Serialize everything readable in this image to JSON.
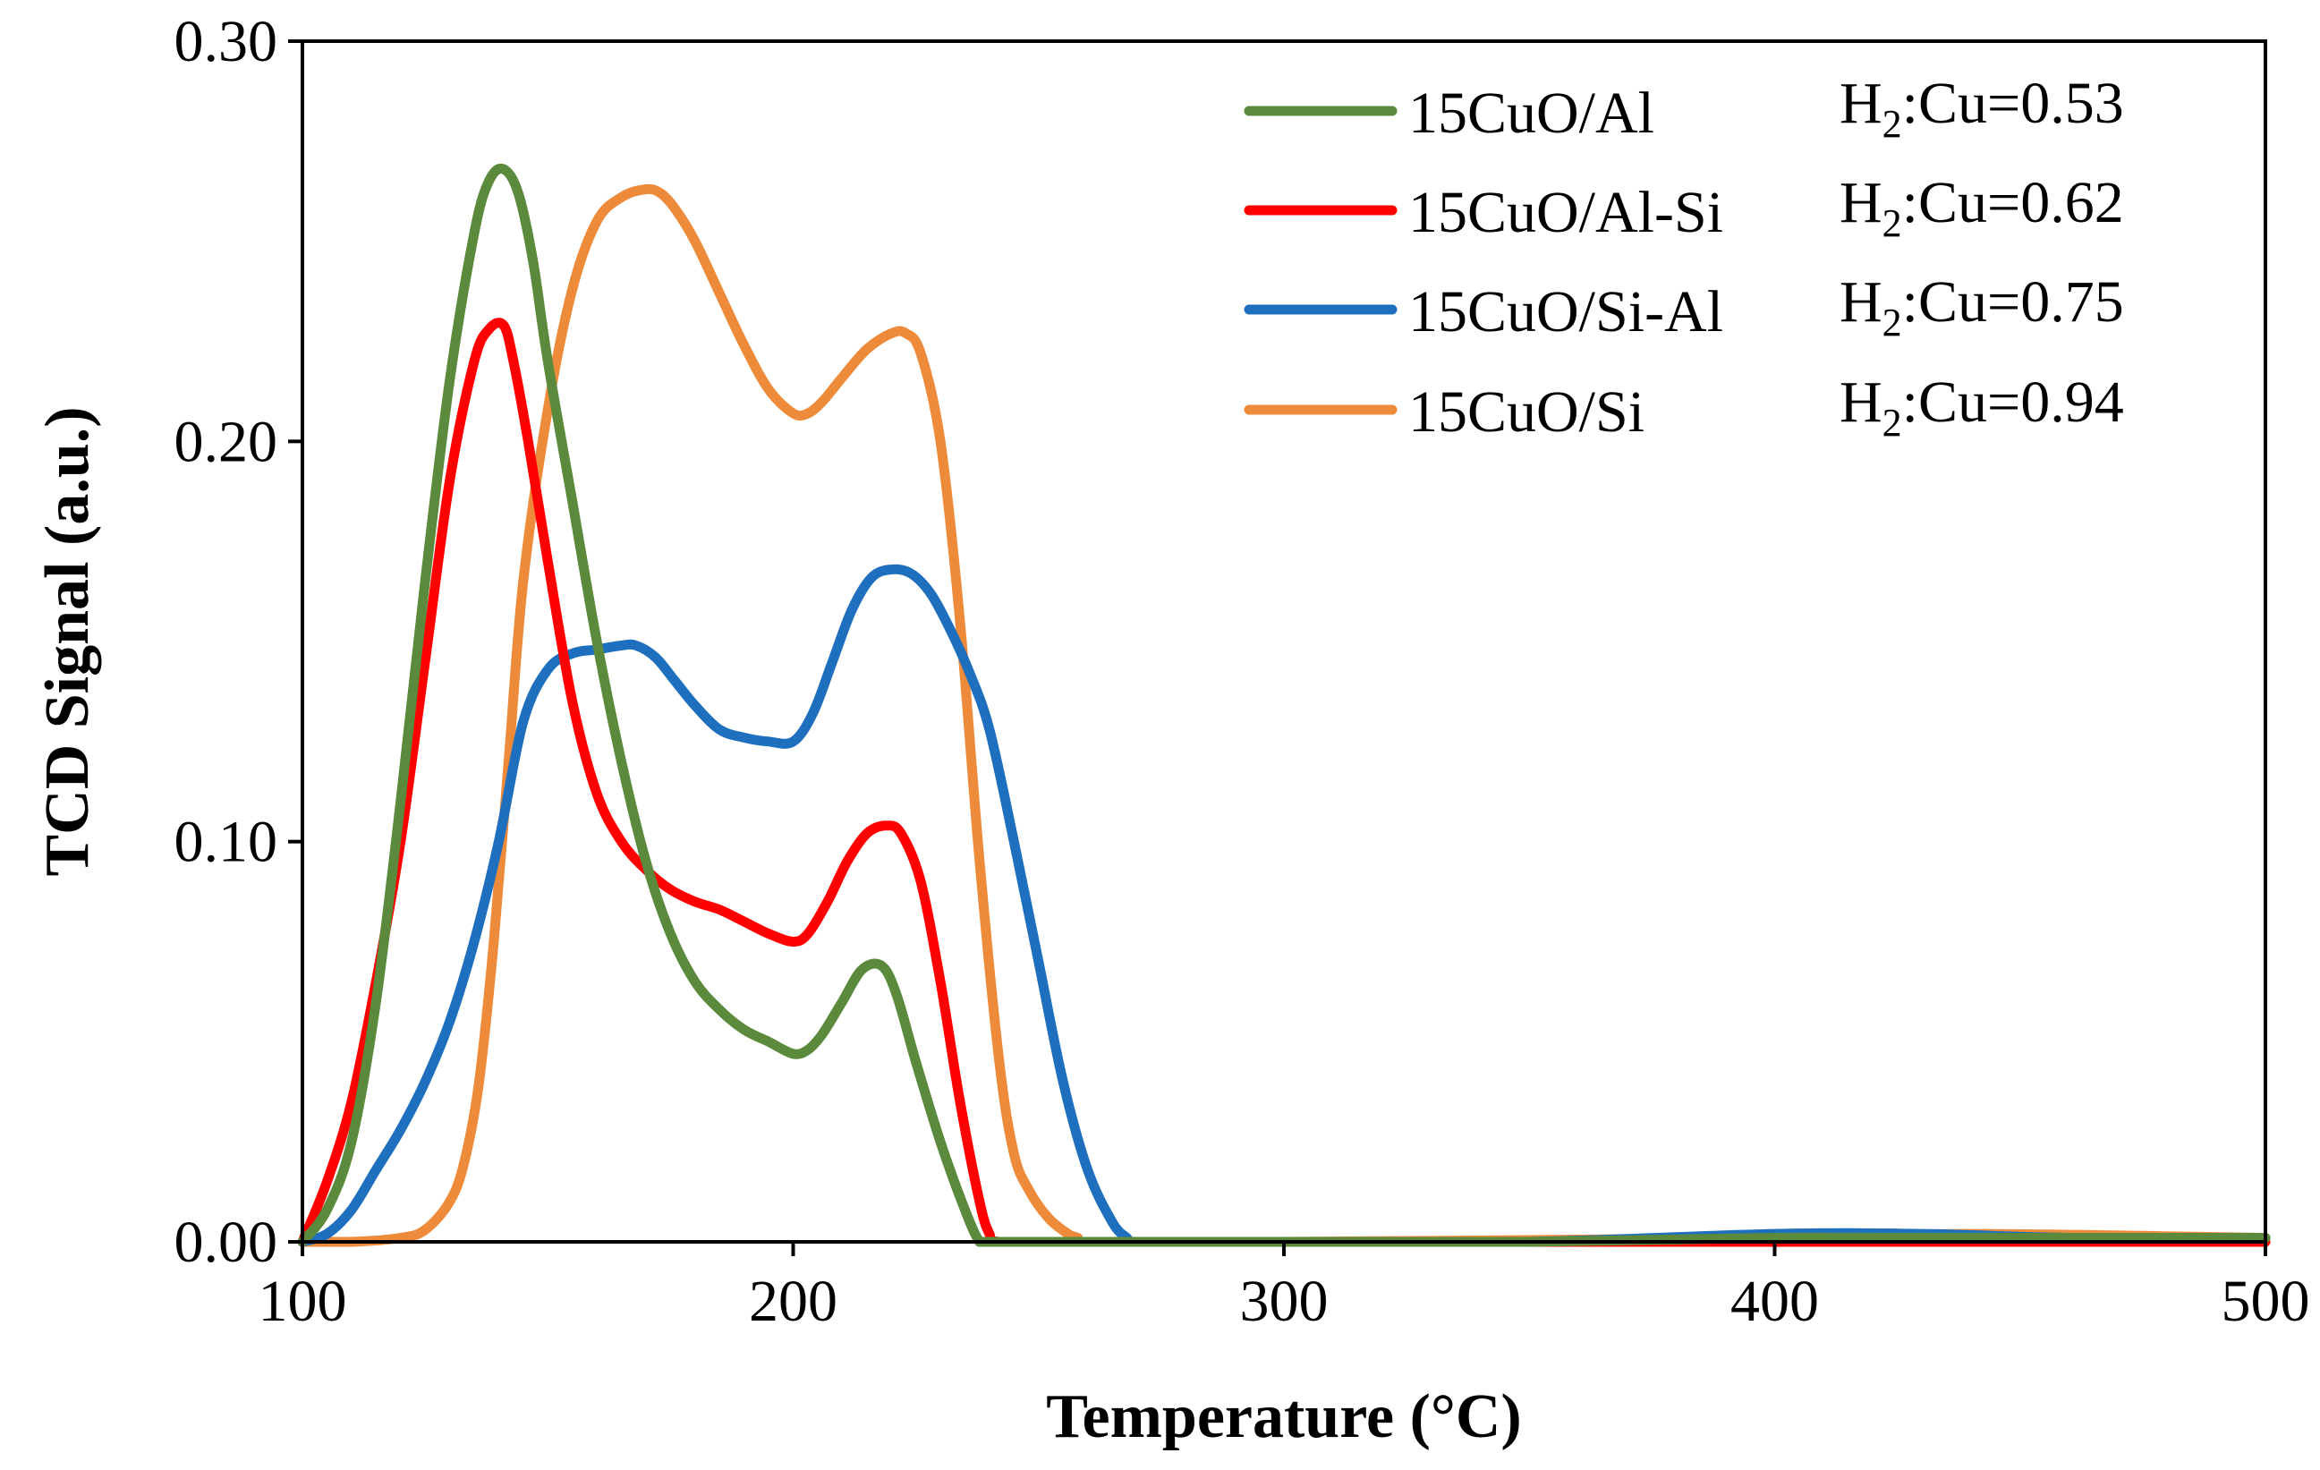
{
  "chart_data": {
    "type": "line",
    "title": "",
    "xlabel": "Temperature (°C)",
    "ylabel": "TCD Signal (a.u.)",
    "xlim": [
      100,
      500
    ],
    "ylim": [
      0,
      0.3
    ],
    "xticks": [
      100,
      200,
      300,
      400,
      500
    ],
    "xtick_labels": [
      "100",
      "200",
      "300",
      "400",
      "500"
    ],
    "yticks": [
      0,
      0.1,
      0.2,
      0.3
    ],
    "ytick_labels": [
      "0.00",
      "0.10",
      "0.20",
      "0.30"
    ],
    "grid": false,
    "legend_position": "top-right",
    "series": [
      {
        "name": "15CuO/Al",
        "color": "#5B8A3C",
        "ratio": {
          "prefix": "H",
          "sub": "2",
          "suffix": ":Cu=0.53"
        },
        "x": [
          100,
          105,
          110,
          115,
          120,
          125,
          130,
          135,
          138,
          141,
          144,
          147,
          150,
          155,
          160,
          165,
          170,
          175,
          180,
          185,
          190,
          195,
          200,
          203,
          206,
          210,
          214,
          218,
          221,
          225,
          230,
          235,
          238,
          240,
          260,
          300,
          350,
          400,
          450,
          500
        ],
        "y": [
          0,
          0.008,
          0.025,
          0.06,
          0.11,
          0.165,
          0.215,
          0.252,
          0.265,
          0.268,
          0.262,
          0.245,
          0.22,
          0.185,
          0.15,
          0.12,
          0.095,
          0.077,
          0.065,
          0.058,
          0.053,
          0.05,
          0.047,
          0.048,
          0.052,
          0.06,
          0.068,
          0.069,
          0.062,
          0.045,
          0.025,
          0.008,
          0,
          0,
          0,
          0,
          0,
          0.001,
          0.001,
          0.001
        ]
      },
      {
        "name": "15CuO/Al-Si",
        "color": "#FF0000",
        "ratio": {
          "prefix": "H",
          "sub": "2",
          "suffix": ":Cu=0.62"
        },
        "x": [
          100,
          105,
          110,
          115,
          120,
          125,
          130,
          135,
          138,
          141,
          143,
          146,
          150,
          155,
          160,
          165,
          170,
          175,
          180,
          185,
          190,
          195,
          200,
          203,
          207,
          211,
          215,
          219,
          222,
          226,
          230,
          234,
          238,
          240,
          242,
          260,
          300,
          400,
          500
        ],
        "y": [
          0,
          0.015,
          0.035,
          0.065,
          0.1,
          0.145,
          0.19,
          0.22,
          0.228,
          0.229,
          0.22,
          0.2,
          0.17,
          0.135,
          0.112,
          0.1,
          0.093,
          0.088,
          0.085,
          0.083,
          0.08,
          0.077,
          0.075,
          0.077,
          0.085,
          0.095,
          0.102,
          0.104,
          0.102,
          0.09,
          0.065,
          0.035,
          0.01,
          0.002,
          0,
          0,
          0,
          0,
          0
        ]
      },
      {
        "name": "15CuO/Si-Al",
        "color": "#1F6FBF",
        "ratio": {
          "prefix": "H",
          "sub": "2",
          "suffix": ":Cu=0.75"
        },
        "x": [
          100,
          105,
          110,
          115,
          120,
          125,
          130,
          135,
          140,
          145,
          150,
          155,
          160,
          165,
          168,
          172,
          176,
          180,
          185,
          190,
          195,
          200,
          204,
          208,
          212,
          216,
          220,
          224,
          228,
          232,
          236,
          240,
          245,
          250,
          255,
          260,
          265,
          268,
          270,
          300,
          350,
          400,
          430,
          460,
          500
        ],
        "y": [
          0,
          0.002,
          0.008,
          0.018,
          0.028,
          0.04,
          0.055,
          0.075,
          0.1,
          0.13,
          0.143,
          0.147,
          0.148,
          0.149,
          0.149,
          0.146,
          0.14,
          0.134,
          0.128,
          0.126,
          0.125,
          0.125,
          0.132,
          0.145,
          0.158,
          0.166,
          0.168,
          0.167,
          0.162,
          0.153,
          0.142,
          0.128,
          0.1,
          0.07,
          0.04,
          0.018,
          0.005,
          0.001,
          0,
          0,
          0,
          0.002,
          0.002,
          0.001,
          0.001
        ]
      },
      {
        "name": "15CuO/Si",
        "color": "#ED8B3A",
        "ratio": {
          "prefix": "H",
          "sub": "2",
          "suffix": ":Cu=0.94"
        },
        "x": [
          100,
          110,
          120,
          125,
          130,
          133,
          136,
          139,
          142,
          145,
          150,
          155,
          160,
          165,
          170,
          173,
          176,
          180,
          185,
          190,
          195,
          200,
          203,
          206,
          210,
          215,
          220,
          223,
          226,
          230,
          234,
          238,
          242,
          245,
          248,
          252,
          256,
          258,
          260,
          300,
          400,
          440,
          500
        ],
        "y": [
          0,
          0,
          0.001,
          0.003,
          0.01,
          0.02,
          0.04,
          0.075,
          0.12,
          0.165,
          0.208,
          0.238,
          0.255,
          0.261,
          0.263,
          0.262,
          0.258,
          0.25,
          0.237,
          0.224,
          0.213,
          0.207,
          0.207,
          0.21,
          0.216,
          0.223,
          0.227,
          0.227,
          0.222,
          0.2,
          0.155,
          0.095,
          0.045,
          0.022,
          0.013,
          0.006,
          0.002,
          0.001,
          0,
          0,
          0.001,
          0.002,
          0.001
        ]
      }
    ]
  }
}
